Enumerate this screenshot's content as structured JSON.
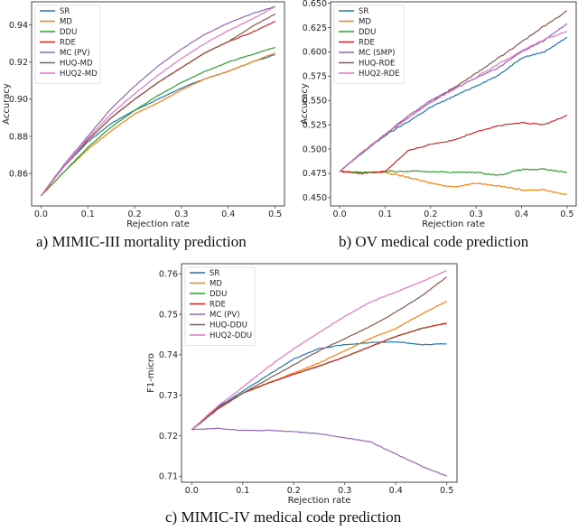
{
  "chart_data": [
    {
      "id": "a",
      "type": "line",
      "caption": "a) MIMIC-III mortality prediction",
      "title": "",
      "xlabel": "Rejection rate",
      "ylabel": "Accuracy",
      "xlim": [
        -0.02,
        0.52
      ],
      "ylim": [
        0.8425,
        0.9525
      ],
      "xticks": [
        0.0,
        0.1,
        0.2,
        0.3,
        0.4,
        0.5
      ],
      "xtick_labels": [
        "0.0",
        "0.1",
        "0.2",
        "0.3",
        "0.4",
        "0.5"
      ],
      "yticks": [
        0.86,
        0.88,
        0.9,
        0.92,
        0.94
      ],
      "ytick_labels": [
        "0.86",
        "0.88",
        "0.90",
        "0.92",
        "0.94"
      ],
      "legend_position": "top-left",
      "grid": false,
      "x": [
        0.0,
        0.05,
        0.1,
        0.15,
        0.2,
        0.25,
        0.3,
        0.35,
        0.4,
        0.45,
        0.5
      ],
      "series": [
        {
          "name": "SR",
          "color": "#1f77b4",
          "values": [
            0.848,
            0.864,
            0.877,
            0.887,
            0.894,
            0.9,
            0.906,
            0.911,
            0.915,
            0.92,
            0.924
          ]
        },
        {
          "name": "MD",
          "color": "#ff7f0e",
          "values": [
            0.848,
            0.861,
            0.873,
            0.883,
            0.892,
            0.898,
            0.905,
            0.911,
            0.915,
            0.92,
            0.925
          ]
        },
        {
          "name": "DDU",
          "color": "#2ca02c",
          "values": [
            0.848,
            0.861,
            0.874,
            0.885,
            0.894,
            0.902,
            0.909,
            0.915,
            0.92,
            0.924,
            0.928
          ]
        },
        {
          "name": "RDE",
          "color": "#d62728",
          "values": [
            0.848,
            0.864,
            0.878,
            0.89,
            0.9,
            0.909,
            0.917,
            0.925,
            0.931,
            0.936,
            0.942
          ]
        },
        {
          "name": "MC (PV)",
          "color": "#9467bd",
          "values": [
            0.848,
            0.865,
            0.88,
            0.895,
            0.907,
            0.918,
            0.927,
            0.935,
            0.941,
            0.946,
            0.95
          ]
        },
        {
          "name": "HUQ-MD",
          "color": "#8c564b",
          "values": [
            0.848,
            0.864,
            0.878,
            0.89,
            0.9,
            0.909,
            0.917,
            0.925,
            0.931,
            0.939,
            0.946
          ]
        },
        {
          "name": "HUQ2-MD",
          "color": "#e377c2",
          "values": [
            0.848,
            0.864,
            0.879,
            0.892,
            0.903,
            0.913,
            0.922,
            0.93,
            0.937,
            0.943,
            0.95
          ]
        }
      ]
    },
    {
      "id": "b",
      "type": "line",
      "caption": "b) OV medical code prediction",
      "title": "",
      "xlabel": "Rejection rate",
      "ylabel": "Accuracy",
      "xlim": [
        -0.02,
        0.52
      ],
      "ylim": [
        0.4415,
        0.6515
      ],
      "xticks": [
        0.0,
        0.1,
        0.2,
        0.3,
        0.4,
        0.5
      ],
      "xtick_labels": [
        "0.0",
        "0.1",
        "0.2",
        "0.3",
        "0.4",
        "0.5"
      ],
      "yticks": [
        0.45,
        0.475,
        0.5,
        0.525,
        0.55,
        0.575,
        0.6,
        0.625,
        0.65
      ],
      "ytick_labels": [
        "0.450",
        "0.475",
        "0.500",
        "0.525",
        "0.550",
        "0.575",
        "0.600",
        "0.625",
        "0.650"
      ],
      "legend_position": "top-left",
      "grid": false,
      "x": [
        0.0,
        0.05,
        0.1,
        0.15,
        0.2,
        0.25,
        0.3,
        0.35,
        0.4,
        0.45,
        0.5
      ],
      "series": [
        {
          "name": "SR",
          "color": "#1f77b4",
          "values": [
            0.477,
            0.496,
            0.514,
            0.528,
            0.543,
            0.554,
            0.565,
            0.576,
            0.594,
            0.6,
            0.615
          ]
        },
        {
          "name": "MD",
          "color": "#ff7f0e",
          "values": [
            0.477,
            0.476,
            0.476,
            0.471,
            0.465,
            0.461,
            0.465,
            0.462,
            0.458,
            0.458,
            0.453
          ]
        },
        {
          "name": "DDU",
          "color": "#2ca02c",
          "values": [
            0.477,
            0.476,
            0.477,
            0.477,
            0.477,
            0.476,
            0.476,
            0.473,
            0.479,
            0.479,
            0.476
          ]
        },
        {
          "name": "RDE",
          "color": "#d62728",
          "values": [
            0.477,
            0.475,
            0.477,
            0.498,
            0.505,
            0.509,
            0.518,
            0.524,
            0.527,
            0.525,
            0.535
          ]
        },
        {
          "name": "MC (SMP)",
          "color": "#9467bd",
          "values": [
            0.477,
            0.497,
            0.515,
            0.534,
            0.55,
            0.562,
            0.573,
            0.584,
            0.6,
            0.612,
            0.629
          ]
        },
        {
          "name": "HUQ-RDE",
          "color": "#8c564b",
          "values": [
            0.477,
            0.497,
            0.515,
            0.532,
            0.548,
            0.563,
            0.578,
            0.594,
            0.61,
            0.627,
            0.642
          ]
        },
        {
          "name": "HUQ2-RDE",
          "color": "#e377c2",
          "values": [
            0.477,
            0.497,
            0.515,
            0.532,
            0.548,
            0.561,
            0.574,
            0.588,
            0.601,
            0.613,
            0.621
          ]
        }
      ]
    },
    {
      "id": "c",
      "type": "line",
      "caption": "c) MIMIC-IV medical code prediction",
      "title": "",
      "xlabel": "Rejection rate",
      "ylabel": "F1-micro",
      "xlim": [
        -0.02,
        0.52
      ],
      "ylim": [
        0.7085,
        0.7625
      ],
      "xticks": [
        0.0,
        0.1,
        0.2,
        0.3,
        0.4,
        0.5
      ],
      "xtick_labels": [
        "0.0",
        "0.1",
        "0.2",
        "0.3",
        "0.4",
        "0.5"
      ],
      "yticks": [
        0.71,
        0.72,
        0.73,
        0.74,
        0.75,
        0.76
      ],
      "ytick_labels": [
        "0.71",
        "0.72",
        "0.73",
        "0.74",
        "0.75",
        "0.76"
      ],
      "legend_position": "top-left",
      "grid": false,
      "x": [
        0.0,
        0.05,
        0.1,
        0.15,
        0.2,
        0.25,
        0.3,
        0.35,
        0.4,
        0.45,
        0.5
      ],
      "series": [
        {
          "name": "SR",
          "color": "#1f77b4",
          "values": [
            0.7215,
            0.727,
            0.731,
            0.735,
            0.739,
            0.7415,
            0.7425,
            0.743,
            0.7432,
            0.7425,
            0.7427
          ]
        },
        {
          "name": "MD",
          "color": "#ff7f0e",
          "values": [
            0.7215,
            0.7265,
            0.7305,
            0.733,
            0.7355,
            0.738,
            0.741,
            0.744,
            0.7465,
            0.75,
            0.7532
          ]
        },
        {
          "name": "DDU",
          "color": "#2ca02c",
          "values": [
            0.7215,
            0.7265,
            0.7305,
            0.733,
            0.7352,
            0.7372,
            0.7395,
            0.742,
            0.7445,
            0.7465,
            0.7478
          ]
        },
        {
          "name": "RDE",
          "color": "#d62728",
          "values": [
            0.7215,
            0.7265,
            0.7305,
            0.733,
            0.7352,
            0.7372,
            0.7395,
            0.742,
            0.7445,
            0.7465,
            0.7478
          ]
        },
        {
          "name": "MC (PV)",
          "color": "#9467bd",
          "values": [
            0.7215,
            0.7218,
            0.7213,
            0.7213,
            0.721,
            0.7205,
            0.7195,
            0.7185,
            0.7155,
            0.7125,
            0.71
          ]
        },
        {
          "name": "HUQ-DDU",
          "color": "#8c564b",
          "values": [
            0.7215,
            0.7268,
            0.7305,
            0.734,
            0.7375,
            0.741,
            0.744,
            0.747,
            0.7505,
            0.7545,
            0.7592
          ]
        },
        {
          "name": "HUQ2-DDU",
          "color": "#e377c2",
          "values": [
            0.7215,
            0.7272,
            0.732,
            0.737,
            0.7415,
            0.7455,
            0.7495,
            0.753,
            0.7555,
            0.758,
            0.7608
          ]
        }
      ]
    }
  ]
}
